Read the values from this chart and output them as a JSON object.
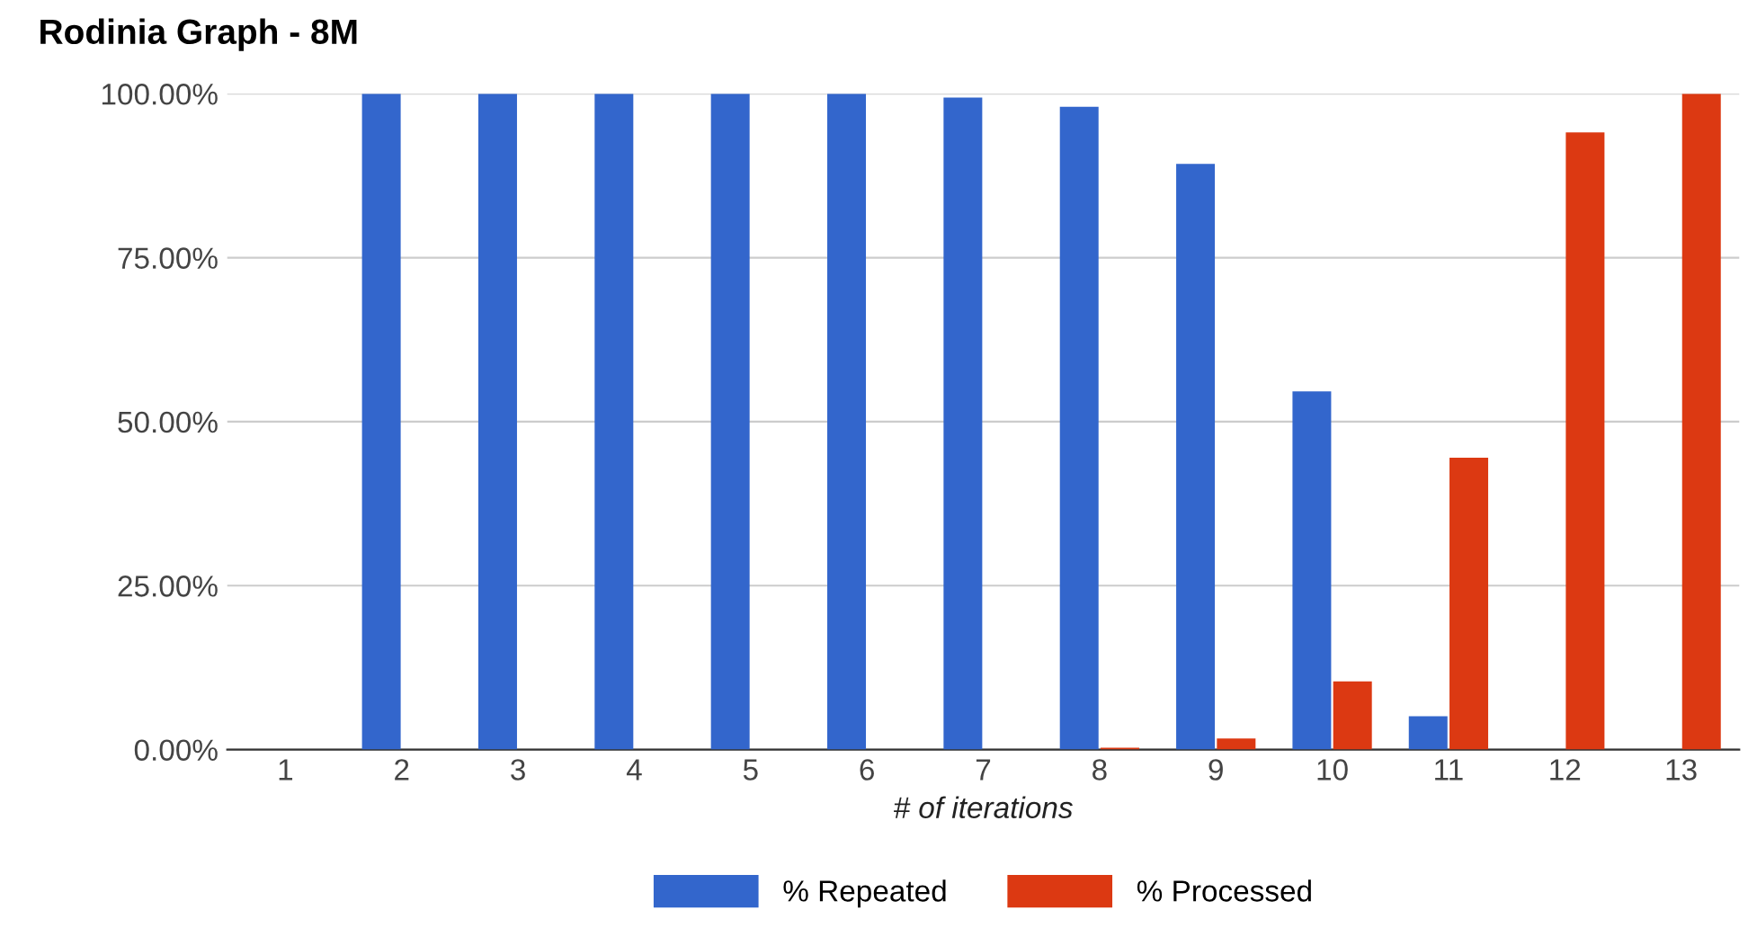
{
  "chart_data": {
    "type": "bar",
    "title": "Rodinia Graph - 8M",
    "xlabel": "# of iterations",
    "categories": [
      "1",
      "2",
      "3",
      "4",
      "5",
      "6",
      "7",
      "8",
      "9",
      "10",
      "11",
      "12",
      "13"
    ],
    "series": [
      {
        "name": "% Repeated",
        "color": "#3366cc",
        "values": [
          0,
          100,
          100,
          100,
          100,
          100,
          99.4,
          98,
          89.3,
          54.6,
          5.1,
          0,
          0
        ]
      },
      {
        "name": "% Processed",
        "color": "#dc3912",
        "values": [
          0,
          0,
          0,
          0,
          0,
          0,
          0,
          0.3,
          1.7,
          10.4,
          44.5,
          94.1,
          100
        ]
      }
    ],
    "ylim": [
      0,
      100
    ],
    "yticks": [
      {
        "value": 0,
        "label": "0.00%"
      },
      {
        "value": 25,
        "label": "25.00%"
      },
      {
        "value": 50,
        "label": "50.00%"
      },
      {
        "value": 75,
        "label": "75.00%"
      },
      {
        "value": 100,
        "label": "100.00%"
      }
    ],
    "grid": "y",
    "legend": "bottom"
  }
}
